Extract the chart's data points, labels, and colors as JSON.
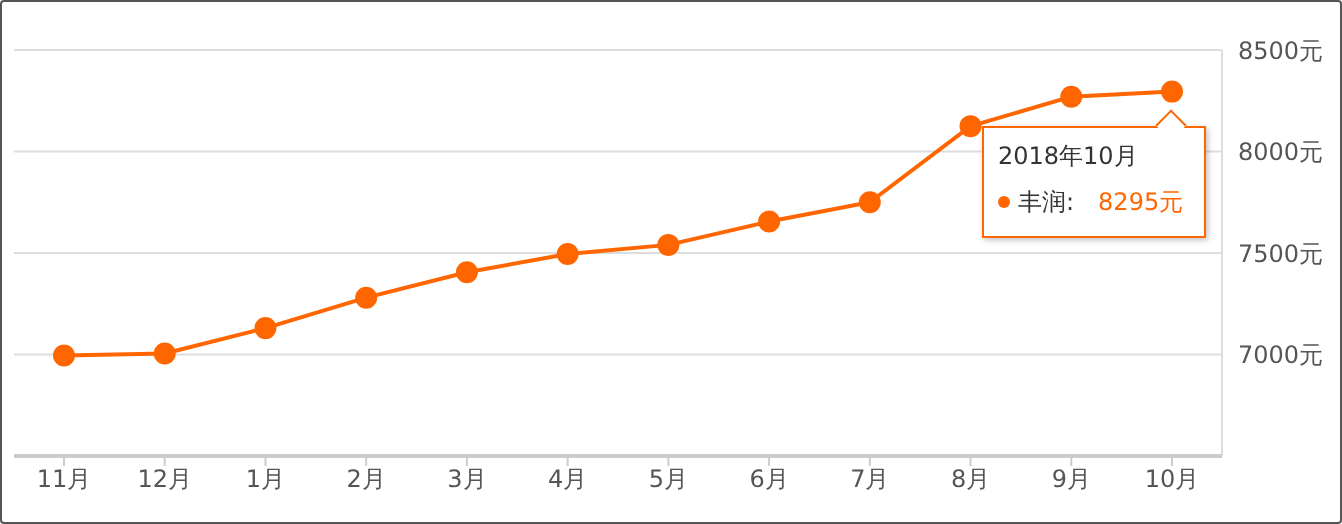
{
  "chart_data": {
    "type": "line",
    "categories": [
      "11月",
      "12月",
      "1月",
      "2月",
      "3月",
      "4月",
      "5月",
      "6月",
      "7月",
      "8月",
      "9月",
      "10月"
    ],
    "series": [
      {
        "name": "丰润:",
        "color": "#ff6600",
        "values": [
          6995,
          7005,
          7130,
          7280,
          7405,
          7495,
          7540,
          7655,
          7750,
          8125,
          8270,
          8295
        ]
      }
    ],
    "ylim": [
      6500,
      8500
    ],
    "yticks": [
      {
        "value": 7000,
        "label": "7000元"
      },
      {
        "value": 7500,
        "label": "7500元"
      },
      {
        "value": 8000,
        "label": "8000元"
      },
      {
        "value": 8500,
        "label": "8500元"
      }
    ],
    "grid": "y",
    "marker": "circle",
    "line_style": "solid",
    "legend": "top right",
    "annotations": [
      "2018年10月",
      "8295元"
    ]
  }
}
